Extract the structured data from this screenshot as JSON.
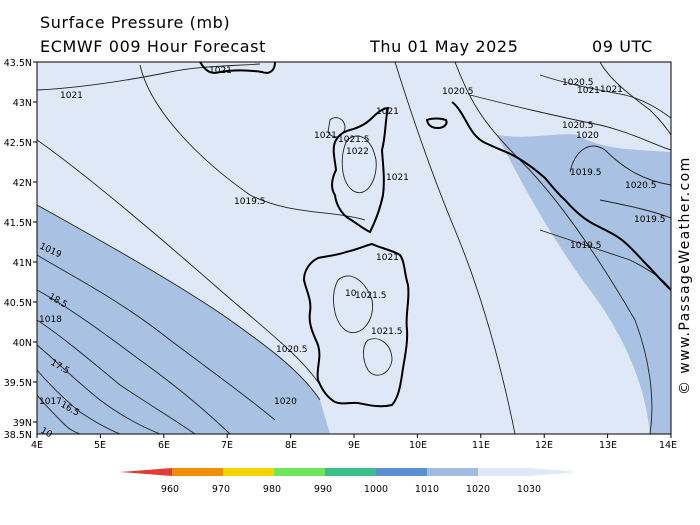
{
  "header": {
    "title": "Surface Pressure (mb)",
    "model": "ECMWF 009 Hour Forecast",
    "date": "Thu 01 May 2025",
    "time": "09 UTC"
  },
  "axes": {
    "lat_labels": [
      "43.5N",
      "43N",
      "42.5N",
      "42N",
      "41.5N",
      "41N",
      "40.5N",
      "40N",
      "39.5N",
      "39N",
      "38.5N"
    ],
    "lon_labels": [
      "4E",
      "5E",
      "6E",
      "7E",
      "8E",
      "9E",
      "10E",
      "11E",
      "12E",
      "13E",
      "14E"
    ]
  },
  "isobar_labels": [
    "1021",
    "1021",
    "1020.5",
    "1021",
    "1021",
    "1021.5",
    "1022",
    "1021",
    "1020.5",
    "1020",
    "1021",
    "1020.5",
    "1019.5",
    "1020.5",
    "1019.5",
    "1019.5",
    "1021",
    "1021.5",
    "10",
    "1021",
    "1021.5",
    "1020.5",
    "1020",
    "1019.5",
    "1019",
    "18.5",
    "1018",
    "17.5",
    "1017",
    "16.5",
    "10"
  ],
  "legend": {
    "values": [
      "960",
      "970",
      "980",
      "990",
      "1000",
      "1010",
      "1020",
      "1030"
    ],
    "colors": [
      "#e63a32",
      "#f28c0b",
      "#f5d400",
      "#6ee65c",
      "#3cbf8a",
      "#5b8fd1",
      "#9fbde3",
      "#dfe8f6"
    ]
  },
  "colors": {
    "high_fill": "#dfe8f6",
    "low_fill": "#a9c1e2",
    "isobar": "#222222",
    "coast": "#000000"
  },
  "credit": "© www.PassageWeather.com"
}
